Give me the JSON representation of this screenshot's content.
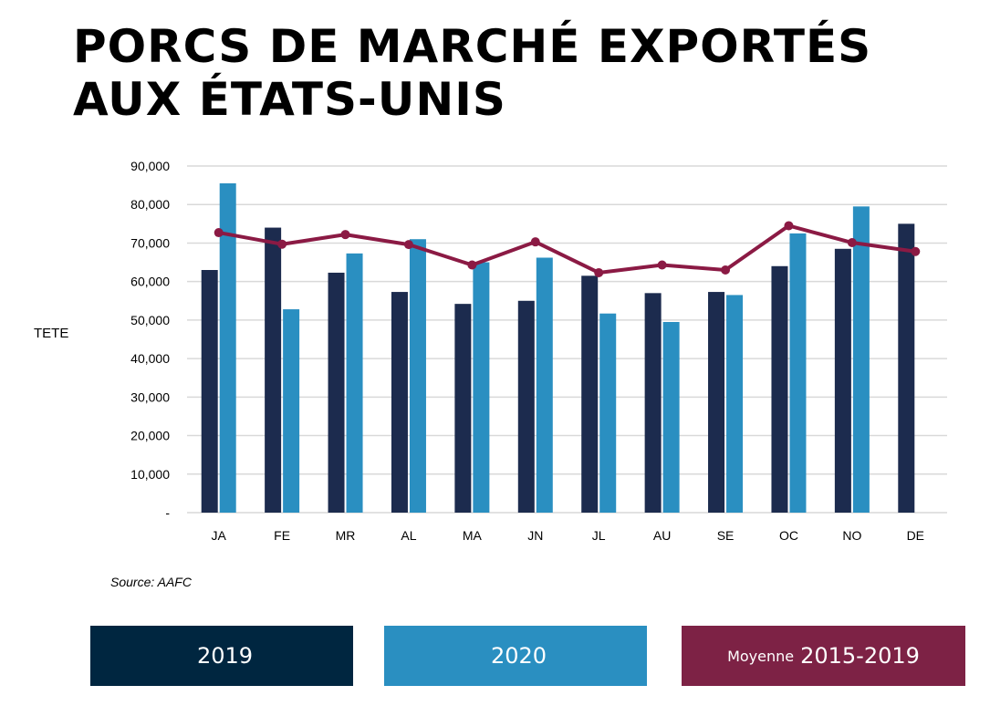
{
  "title": {
    "line1": "PORCS DE MARCHÉ EXPORTÉS",
    "line2": "AUX ÉTATS-UNIS"
  },
  "source": "Source: AAFC",
  "chart_data": {
    "type": "bar",
    "ylabel": "TETE",
    "xlabel": "",
    "categories": [
      "JA",
      "FE",
      "MR",
      "AL",
      "MA",
      "JN",
      "JL",
      "AU",
      "SE",
      "OC",
      "NO",
      "DE"
    ],
    "ylim": [
      0,
      90000
    ],
    "yticks": [
      "-",
      "10,000",
      "20,000",
      "30,000",
      "40,000",
      "50,000",
      "60,000",
      "70,000",
      "80,000",
      "90,000"
    ],
    "grid": true,
    "legend_position": "bottom",
    "series": [
      {
        "name": "2019",
        "kind": "bar",
        "color": "#1c2b4e",
        "values": [
          63000,
          74000,
          62300,
          57300,
          54200,
          55000,
          61500,
          57000,
          57300,
          64000,
          68500,
          75000
        ]
      },
      {
        "name": "2020",
        "kind": "bar",
        "color": "#2a8fc1",
        "values": [
          85500,
          52800,
          67300,
          71000,
          65000,
          66200,
          51700,
          49500,
          56500,
          72500,
          79500,
          null
        ]
      },
      {
        "name": "Moyenne 2015-2019",
        "kind": "line",
        "color": "#8b1a44",
        "values": [
          72700,
          69700,
          72200,
          69600,
          64300,
          70300,
          62300,
          64300,
          63000,
          74500,
          70100,
          67800
        ]
      }
    ]
  },
  "legend": [
    {
      "small": "",
      "label": "2019",
      "color": "#002640"
    },
    {
      "small": "",
      "label": "2020",
      "color": "#2a8fc1"
    },
    {
      "small": "Moyenne",
      "label": "2015-2019",
      "color": "#7d2245"
    }
  ]
}
